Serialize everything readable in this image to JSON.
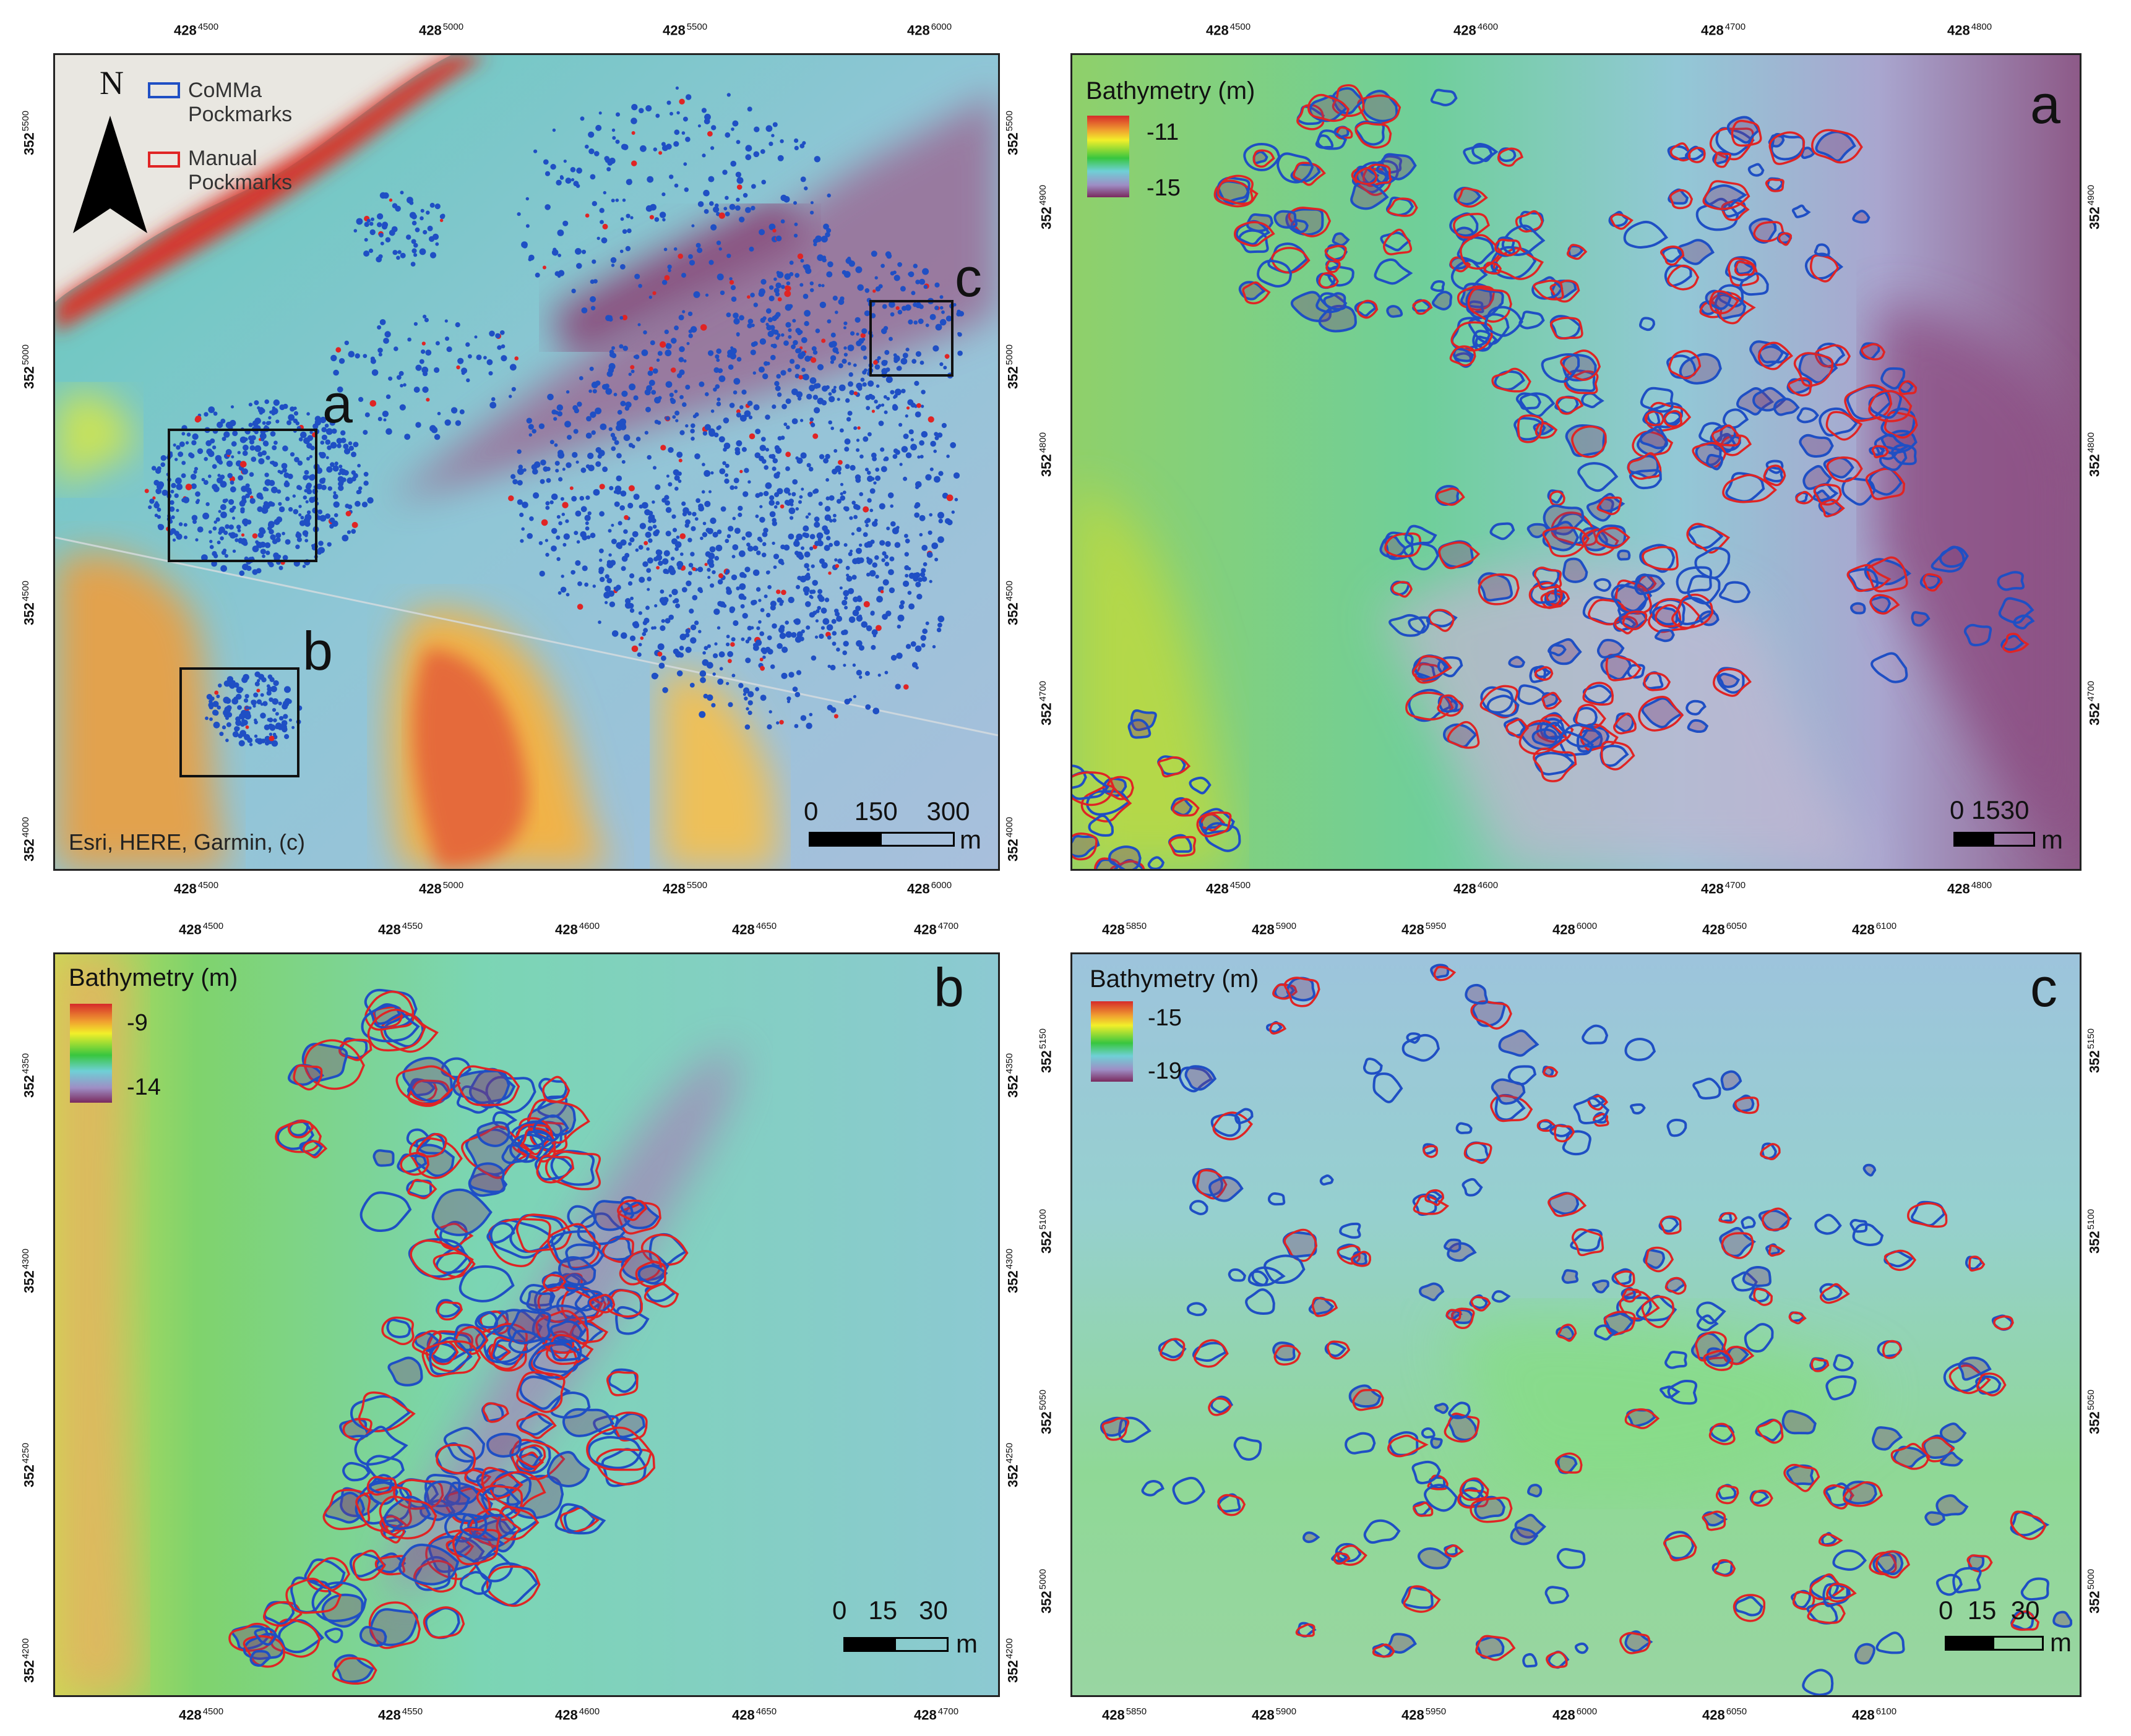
{
  "overview": {
    "legend": {
      "comma_label": "CoMMa Pockmarks",
      "manual_label": "Manual Pockmarks",
      "comma_color": "#1f4fc4",
      "manual_color": "#e02424"
    },
    "north_label": "N",
    "attribution": "Esri, HERE, Garmin, (c)",
    "scale": {
      "labels": "0     150    300",
      "unit": "m"
    },
    "inset_labels": {
      "a": "a",
      "b": "b",
      "c": "c"
    },
    "x_ticks": [
      {
        "main": "428",
        "sup": "4500"
      },
      {
        "main": "428",
        "sup": "5000"
      },
      {
        "main": "428",
        "sup": "5500"
      },
      {
        "main": "428",
        "sup": "6000"
      }
    ],
    "y_ticks": [
      {
        "main": "352",
        "sup": "5500"
      },
      {
        "main": "352",
        "sup": "5000"
      },
      {
        "main": "352",
        "sup": "4500"
      },
      {
        "main": "352",
        "sup": "4000"
      }
    ]
  },
  "panel_a": {
    "letter": "a",
    "legend_title": "Bathymetry (m)",
    "legend_max": "-11",
    "legend_min": "-15",
    "scale": {
      "labels": "0 1530",
      "unit": "m"
    },
    "x_ticks": [
      {
        "main": "428",
        "sup": "4500"
      },
      {
        "main": "428",
        "sup": "4600"
      },
      {
        "main": "428",
        "sup": "4700"
      },
      {
        "main": "428",
        "sup": "4800"
      }
    ],
    "y_ticks": [
      {
        "main": "352",
        "sup": "4900"
      },
      {
        "main": "352",
        "sup": "4800"
      },
      {
        "main": "352",
        "sup": "4700"
      }
    ]
  },
  "panel_b": {
    "letter": "b",
    "legend_title": "Bathymetry (m)",
    "legend_max": "-9",
    "legend_min": "-14",
    "scale": {
      "labels": "0   15   30",
      "unit": "m"
    },
    "x_ticks": [
      {
        "main": "428",
        "sup": "4500"
      },
      {
        "main": "428",
        "sup": "4550"
      },
      {
        "main": "428",
        "sup": "4600"
      },
      {
        "main": "428",
        "sup": "4650"
      },
      {
        "main": "428",
        "sup": "4700"
      }
    ],
    "y_ticks": [
      {
        "main": "352",
        "sup": "4350"
      },
      {
        "main": "352",
        "sup": "4300"
      },
      {
        "main": "352",
        "sup": "4250"
      },
      {
        "main": "352",
        "sup": "4200"
      }
    ]
  },
  "panel_c": {
    "letter": "c",
    "legend_title": "Bathymetry (m)",
    "legend_max": "-15",
    "legend_min": "-19",
    "scale": {
      "labels": "0  15  30",
      "unit": "m"
    },
    "x_ticks": [
      {
        "main": "428",
        "sup": "5850"
      },
      {
        "main": "428",
        "sup": "5900"
      },
      {
        "main": "428",
        "sup": "5950"
      },
      {
        "main": "428",
        "sup": "6000"
      },
      {
        "main": "428",
        "sup": "6050"
      },
      {
        "main": "428",
        "sup": "6100"
      }
    ],
    "y_ticks": [
      {
        "main": "352",
        "sup": "5150"
      },
      {
        "main": "352",
        "sup": "5100"
      },
      {
        "main": "352",
        "sup": "5050"
      },
      {
        "main": "352",
        "sup": "5000"
      }
    ]
  }
}
